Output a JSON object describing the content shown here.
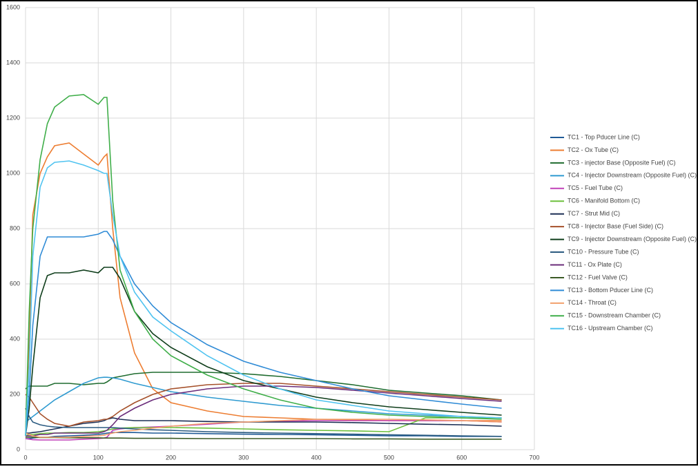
{
  "chart_data": {
    "type": "line",
    "x": [
      0,
      5,
      10,
      20,
      30,
      40,
      60,
      80,
      100,
      108,
      112,
      120,
      130,
      150,
      175,
      200,
      250,
      300,
      350,
      400,
      450,
      500,
      550,
      600,
      655
    ],
    "xlim": [
      0,
      700
    ],
    "xticks": [
      0,
      100,
      200,
      300,
      400,
      500,
      600,
      700
    ],
    "ylim": [
      0,
      1600
    ],
    "yticks": [
      0,
      200,
      400,
      600,
      800,
      1000,
      1200,
      1400,
      1600
    ],
    "grid": true,
    "legend": "right",
    "series": [
      {
        "name": "TC1 - Top Pducer Line (C)",
        "color": "#1f5a96",
        "values": [
          40,
          40,
          42,
          45,
          45,
          48,
          50,
          52,
          55,
          58,
          60,
          62,
          62,
          62,
          60,
          60,
          58,
          56,
          55,
          54,
          52,
          50,
          50,
          48,
          48
        ]
      },
      {
        "name": "TC2 - Ox Tube (C)",
        "color": "#ed7d31",
        "values": [
          50,
          400,
          850,
          1000,
          1060,
          1100,
          1110,
          1070,
          1030,
          1060,
          1070,
          800,
          550,
          350,
          220,
          170,
          140,
          120,
          115,
          110,
          108,
          105,
          105,
          105,
          105
        ]
      },
      {
        "name": "TC3 - injector Base (Opposite Fuel) (C)",
        "color": "#1e6b2e",
        "values": [
          220,
          230,
          230,
          230,
          230,
          240,
          240,
          235,
          240,
          240,
          245,
          260,
          265,
          275,
          280,
          280,
          280,
          275,
          265,
          250,
          235,
          215,
          205,
          195,
          180
        ]
      },
      {
        "name": "TC4 - Injector Downstream (Opposite Fuel) (C)",
        "color": "#2e9ad0",
        "values": [
          100,
          110,
          120,
          140,
          160,
          180,
          210,
          240,
          260,
          262,
          262,
          260,
          255,
          240,
          225,
          210,
          190,
          175,
          160,
          150,
          140,
          130,
          125,
          120,
          115
        ]
      },
      {
        "name": "TC5 - Fuel Tube (C)",
        "color": "#c040b8",
        "values": [
          40,
          38,
          36,
          35,
          35,
          35,
          35,
          38,
          40,
          42,
          45,
          70,
          75,
          80,
          82,
          85,
          92,
          100,
          103,
          105,
          105,
          105,
          105,
          105,
          100
        ]
      },
      {
        "name": "TC6 - Manifold Bottom (C)",
        "color": "#6cbf3c",
        "values": [
          50,
          55,
          55,
          58,
          60,
          60,
          62,
          62,
          65,
          68,
          70,
          75,
          78,
          80,
          80,
          80,
          78,
          75,
          72,
          70,
          68,
          65,
          115,
          115,
          115
        ]
      },
      {
        "name": "TC7 - Strut Mid (C)",
        "color": "#1c2f55",
        "values": [
          60,
          60,
          62,
          65,
          70,
          75,
          85,
          95,
          100,
          105,
          110,
          115,
          110,
          105,
          105,
          105,
          102,
          100,
          100,
          100,
          98,
          95,
          92,
          90,
          85
        ]
      },
      {
        "name": "TC8 - Injector Base (Fuel Side) (C)",
        "color": "#a5502a",
        "values": [
          200,
          190,
          170,
          130,
          110,
          95,
          85,
          100,
          105,
          110,
          110,
          120,
          140,
          170,
          200,
          220,
          235,
          240,
          240,
          230,
          220,
          210,
          200,
          190,
          180
        ]
      },
      {
        "name": "TC9 - Injector Downstream (Opposite Fuel) (C)",
        "color": "#0e3d1a",
        "values": [
          50,
          150,
          300,
          550,
          630,
          640,
          640,
          650,
          640,
          660,
          660,
          660,
          620,
          500,
          420,
          370,
          300,
          250,
          220,
          190,
          170,
          155,
          145,
          135,
          125
        ]
      },
      {
        "name": "TC10 - Pressure Tube (C)",
        "color": "#2a5a80",
        "values": [
          150,
          120,
          100,
          90,
          85,
          82,
          80,
          80,
          80,
          80,
          80,
          80,
          78,
          75,
          72,
          70,
          65,
          62,
          60,
          58,
          56,
          54,
          52,
          50,
          48
        ]
      },
      {
        "name": "TC11 - Ox Plate (C)",
        "color": "#6a2c7a",
        "values": [
          50,
          50,
          50,
          55,
          55,
          60,
          60,
          60,
          60,
          65,
          70,
          90,
          120,
          150,
          180,
          200,
          220,
          230,
          230,
          225,
          215,
          205,
          195,
          185,
          175
        ]
      },
      {
        "name": "TC12 - Fuel Valve (C)",
        "color": "#3a5a25",
        "values": [
          45,
          45,
          45,
          44,
          44,
          44,
          43,
          43,
          43,
          42,
          42,
          42,
          42,
          41,
          41,
          41,
          40,
          40,
          40,
          40,
          39,
          39,
          38,
          38,
          38
        ]
      },
      {
        "name": "TC13 - Bottom Pducer Line (C)",
        "color": "#2f8bd6",
        "values": [
          50,
          200,
          450,
          700,
          770,
          770,
          770,
          770,
          780,
          790,
          790,
          760,
          700,
          600,
          520,
          460,
          380,
          320,
          280,
          250,
          220,
          195,
          180,
          165,
          150
        ]
      },
      {
        "name": "TC14 - Throat (C)",
        "color": "#f2a06c",
        "values": [
          60,
          55,
          50,
          45,
          45,
          45,
          45,
          48,
          50,
          52,
          55,
          60,
          65,
          70,
          78,
          85,
          95,
          100,
          105,
          110,
          110,
          110,
          108,
          105,
          100
        ]
      },
      {
        "name": "TC15 - Downstream Chamber (C)",
        "color": "#3fae49",
        "values": [
          50,
          500,
          800,
          1050,
          1180,
          1240,
          1280,
          1285,
          1250,
          1275,
          1275,
          900,
          650,
          500,
          400,
          340,
          270,
          220,
          180,
          150,
          135,
          125,
          120,
          115,
          110
        ]
      },
      {
        "name": "TC16 - Upstream Chamber (C)",
        "color": "#4fc3f0",
        "values": [
          50,
          300,
          700,
          950,
          1020,
          1040,
          1045,
          1030,
          1010,
          1000,
          1000,
          850,
          700,
          570,
          480,
          430,
          340,
          270,
          220,
          180,
          160,
          140,
          130,
          120,
          115
        ]
      }
    ]
  }
}
